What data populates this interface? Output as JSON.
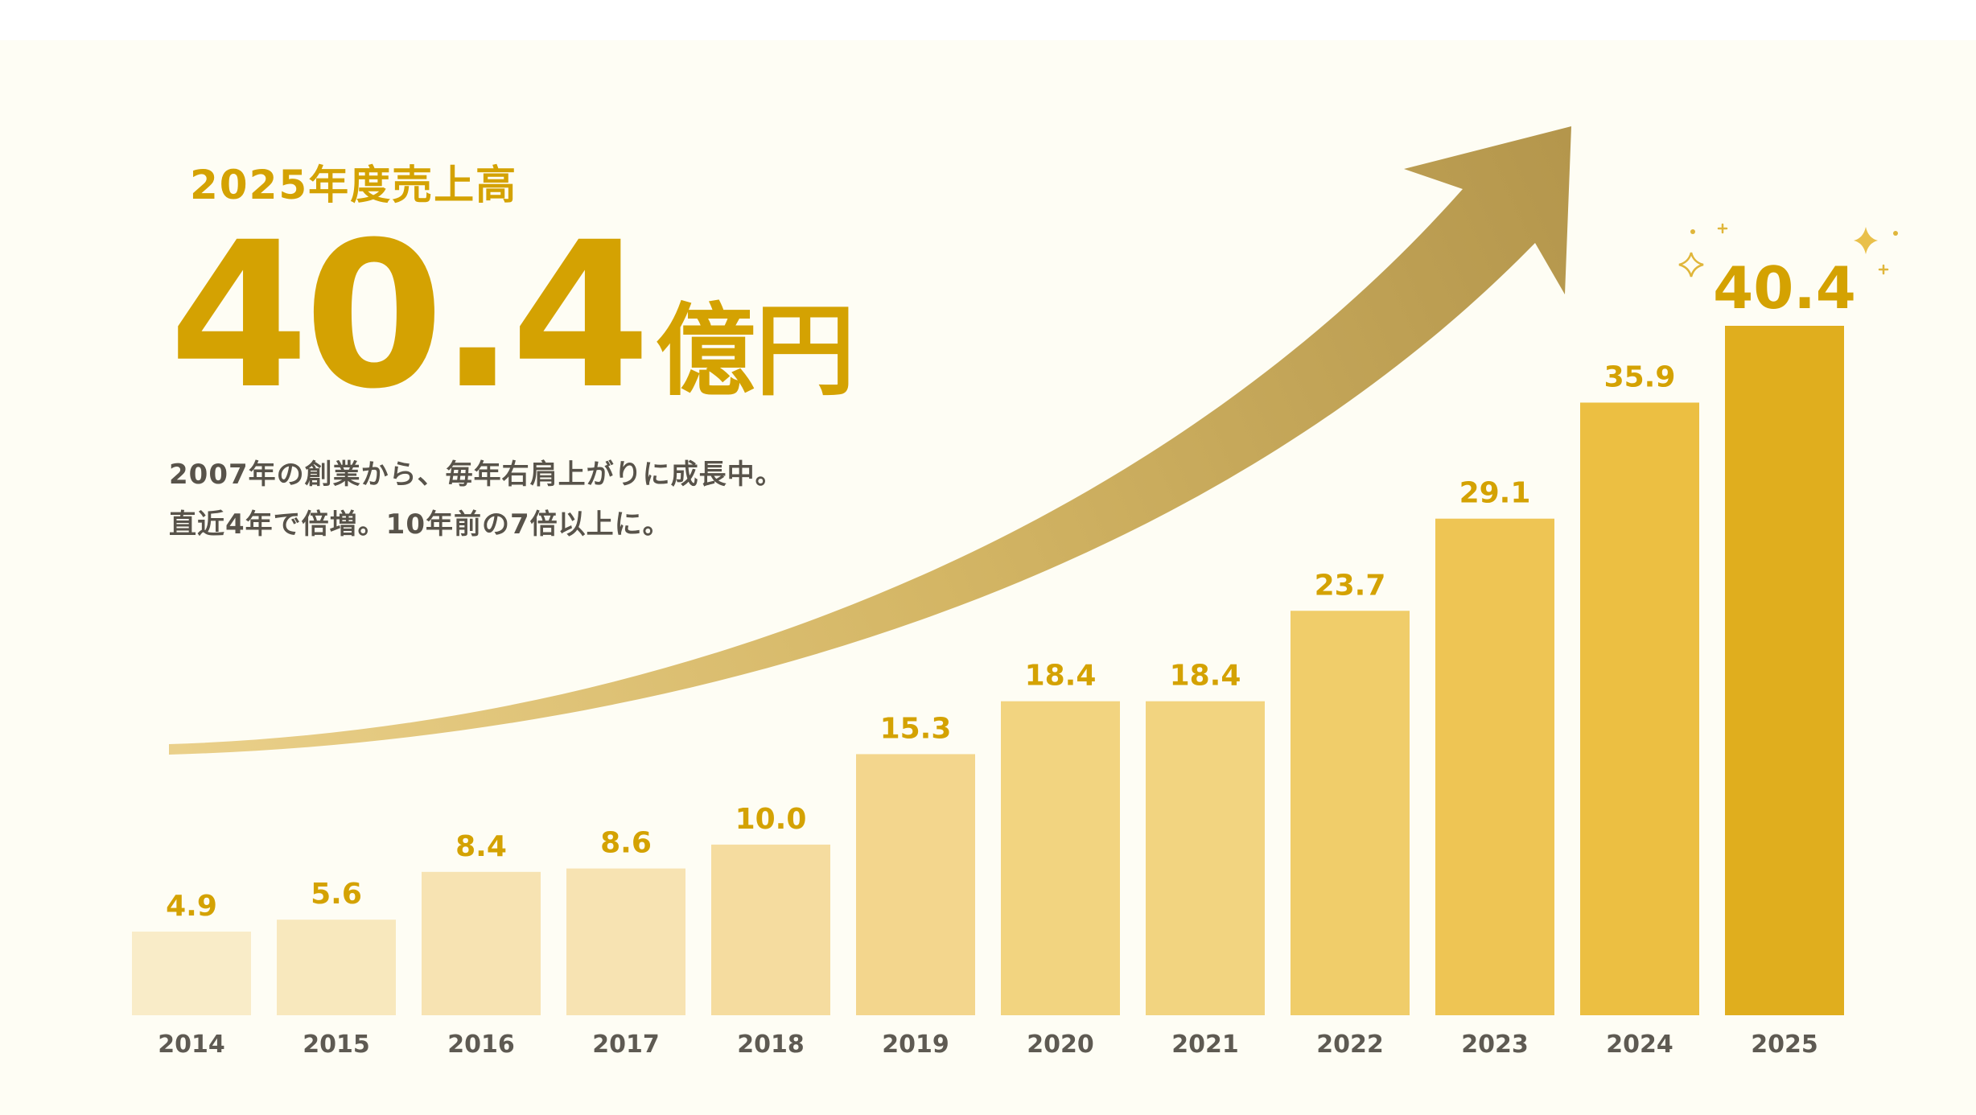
{
  "headline": {
    "label": "2025年度売上高",
    "value": "40.4",
    "unit": "億円"
  },
  "description": {
    "line1": "2007年の創業から、毎年右肩上がりに成長中。",
    "line2": "直近4年で倍増。10年前の7倍以上に。"
  },
  "colors": {
    "accent": "#d4a202",
    "text_dark": "#58534a",
    "axis_label": "#5e5a52",
    "background": "#fefdf4",
    "bar_palette": [
      "#f9ecc8",
      "#f8e8bd",
      "#f7e3b2",
      "#f7e3b2",
      "#f5dc9f",
      "#f3d68d",
      "#f2d480",
      "#f2d480",
      "#f0cd6a",
      "#eec554",
      "#ecbf42",
      "#e0ae1e"
    ],
    "arrow_gradient": [
      "#ead08a",
      "#d4b665",
      "#b4964c"
    ]
  },
  "chart_data": {
    "type": "bar",
    "categories": [
      "2014",
      "2015",
      "2016",
      "2017",
      "2018",
      "2019",
      "2020",
      "2021",
      "2022",
      "2023",
      "2024",
      "2025"
    ],
    "values": [
      4.9,
      5.6,
      8.4,
      8.6,
      10.0,
      15.3,
      18.4,
      18.4,
      23.7,
      29.1,
      35.9,
      40.4
    ],
    "labels": [
      "4.9",
      "5.6",
      "8.4",
      "8.6",
      "10.0",
      "15.3",
      "18.4",
      "18.4",
      "23.7",
      "29.1",
      "35.9",
      "40.4"
    ],
    "highlight_index": 11,
    "title": "",
    "xlabel": "",
    "ylabel": "",
    "ylim": [
      0,
      40.4
    ],
    "grid": false,
    "legend": "none",
    "decoration": "upward-growth-arrow"
  }
}
